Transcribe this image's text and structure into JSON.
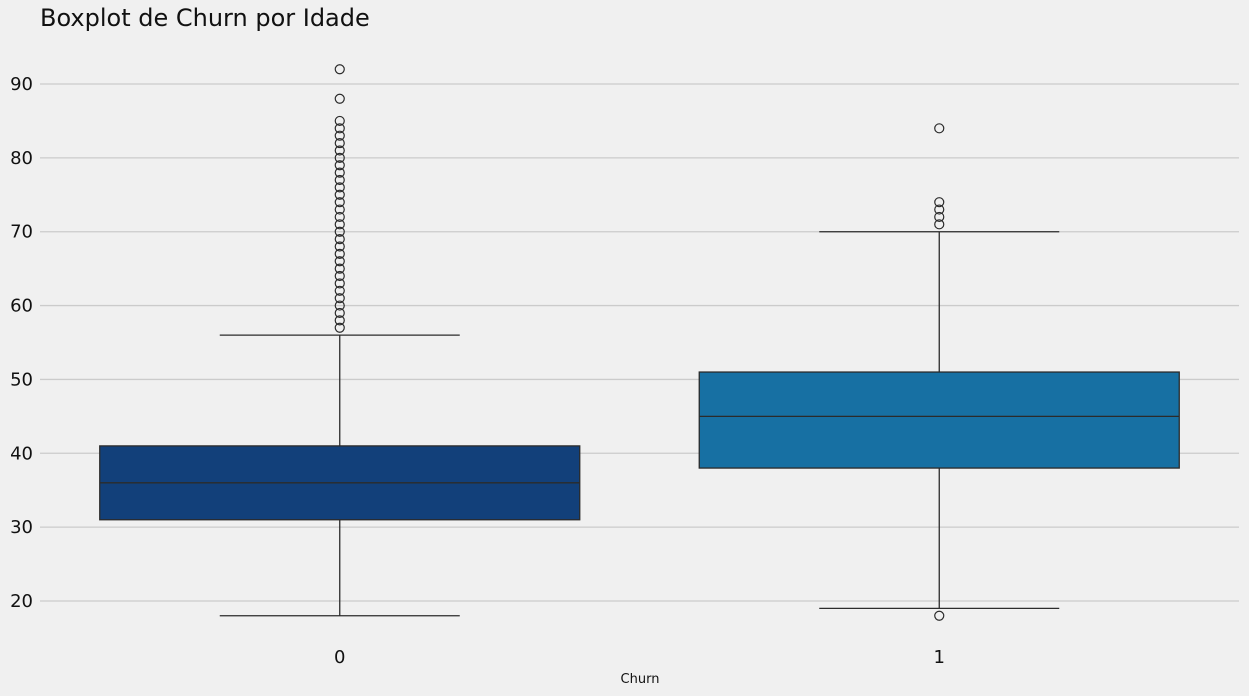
{
  "chart_data": {
    "type": "boxplot",
    "title": "Boxplot de Churn por Idade",
    "xlabel": "Churn",
    "ylabel": "",
    "categories": [
      "0",
      "1"
    ],
    "ylim": [
      14,
      96
    ],
    "yticks": [
      20,
      30,
      40,
      50,
      60,
      70,
      80,
      90
    ],
    "grid": "horizontal",
    "boxes": [
      {
        "category": "0",
        "whisker_low": 18,
        "q1": 31,
        "median": 36,
        "q3": 41,
        "whisker_high": 56,
        "outliers": [
          57,
          58,
          59,
          60,
          61,
          62,
          63,
          64,
          65,
          66,
          67,
          68,
          69,
          70,
          71,
          72,
          73,
          74,
          75,
          76,
          77,
          78,
          79,
          80,
          81,
          82,
          83,
          84,
          85,
          88,
          92
        ],
        "color": "#12407a"
      },
      {
        "category": "1",
        "whisker_low": 19,
        "q1": 38,
        "median": 45,
        "q3": 51,
        "whisker_high": 70,
        "outliers": [
          18,
          71,
          72,
          73,
          74,
          84
        ],
        "color": "#1770a3"
      }
    ],
    "colors": {
      "background": "#f0f0f0",
      "grid": "#cbcbcb",
      "line": "#2b2b2b"
    }
  }
}
